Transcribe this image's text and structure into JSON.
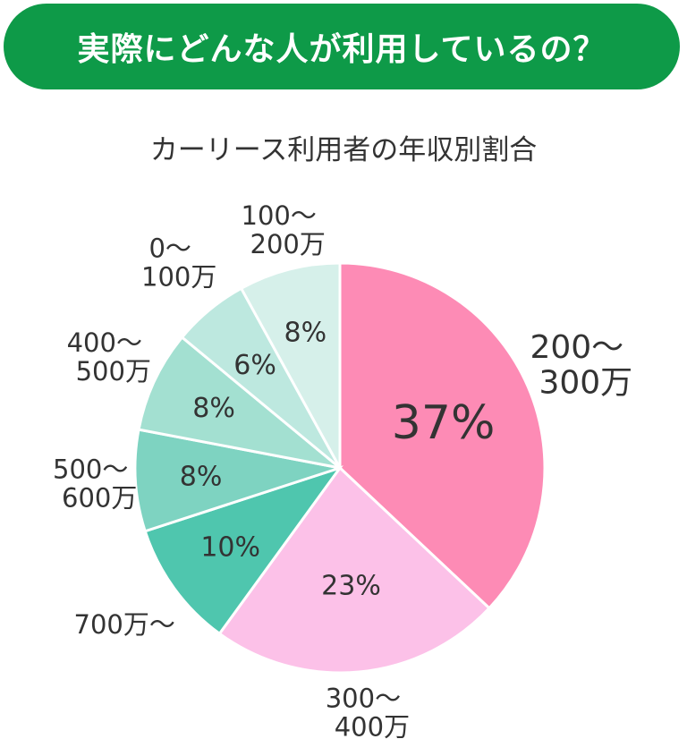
{
  "header": {
    "title": "実際にどんな人が利用しているの？"
  },
  "colors": {
    "banner": "#0e9a48"
  },
  "chart_data": {
    "type": "pie",
    "title": "カーリース利用者の年収別割合",
    "slices": [
      {
        "label": [
          "200～",
          "300万"
        ],
        "value": 37,
        "value_label": "37%",
        "color": "#fd8bb5"
      },
      {
        "label": [
          "300～",
          "400万"
        ],
        "value": 23,
        "value_label": "23%",
        "color": "#fcc1e8"
      },
      {
        "label": [
          "700万～"
        ],
        "value": 10,
        "value_label": "10%",
        "color": "#4fc6ae"
      },
      {
        "label": [
          "500～",
          "600万"
        ],
        "value": 8,
        "value_label": "8%",
        "color": "#7ed3c1"
      },
      {
        "label": [
          "400～",
          "500万"
        ],
        "value": 8,
        "value_label": "8%",
        "color": "#a3e0d1"
      },
      {
        "label": [
          "0～",
          "100万"
        ],
        "value": 6,
        "value_label": "6%",
        "color": "#bde8df"
      },
      {
        "label": [
          "100～",
          "200万"
        ],
        "value": 8,
        "value_label": "8%",
        "color": "#d6f0ea"
      }
    ]
  }
}
